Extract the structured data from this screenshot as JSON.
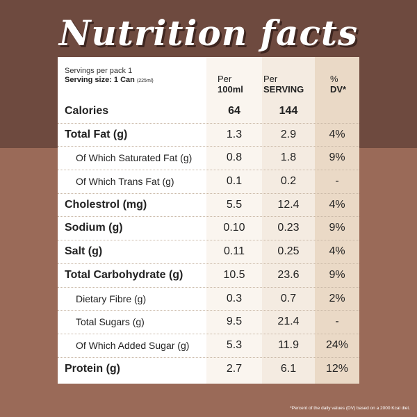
{
  "title": "Nutrition facts",
  "header": {
    "servings_per_pack": "Servings per pack 1",
    "serving_size": "Serving size: 1 Can",
    "serving_size_ml": "(225ml)",
    "col1_line1": "Per",
    "col1_line2": "100ml",
    "col2_line1": "Per",
    "col2_line2": "SERVING",
    "col3_line1": "%",
    "col3_line2": "DV*"
  },
  "rows": [
    {
      "label": "Calories",
      "per100": "64",
      "perServing": "144",
      "dv": ""
    },
    {
      "label": "Total Fat (g)",
      "per100": "1.3",
      "perServing": "2.9",
      "dv": "4%"
    },
    {
      "label": "Of Which Saturated Fat (g)",
      "per100": "0.8",
      "perServing": "1.8",
      "dv": "9%"
    },
    {
      "label": "Of Which Trans Fat (g)",
      "per100": "0.1",
      "perServing": "0.2",
      "dv": "-"
    },
    {
      "label": "Cholestrol (mg)",
      "per100": "5.5",
      "perServing": "12.4",
      "dv": "4%"
    },
    {
      "label": "Sodium (g)",
      "per100": "0.10",
      "perServing": "0.23",
      "dv": "9%"
    },
    {
      "label": "Salt (g)",
      "per100": "0.11",
      "perServing": "0.25",
      "dv": "4%"
    },
    {
      "label": "Total Carbohydrate (g)",
      "per100": "10.5",
      "perServing": "23.6",
      "dv": "9%"
    },
    {
      "label": "Dietary Fibre (g)",
      "per100": "0.3",
      "perServing": "0.7",
      "dv": "2%"
    },
    {
      "label": "Total Sugars (g)",
      "per100": "9.5",
      "perServing": "21.4",
      "dv": "-"
    },
    {
      "label": "Of Which Added Sugar (g)",
      "per100": "5.3",
      "perServing": "11.9",
      "dv": "24%"
    },
    {
      "label": "Protein (g)",
      "per100": "2.7",
      "perServing": "6.1",
      "dv": "12%"
    }
  ],
  "footnote": "*Percent of the daily values (DV) based on a 2000 Kcal diet.",
  "colors": {
    "background_top": "#6e4a3f",
    "background_bottom": "#9a6a58",
    "card": "#ffffff",
    "dv_column": "#ead9c6"
  }
}
